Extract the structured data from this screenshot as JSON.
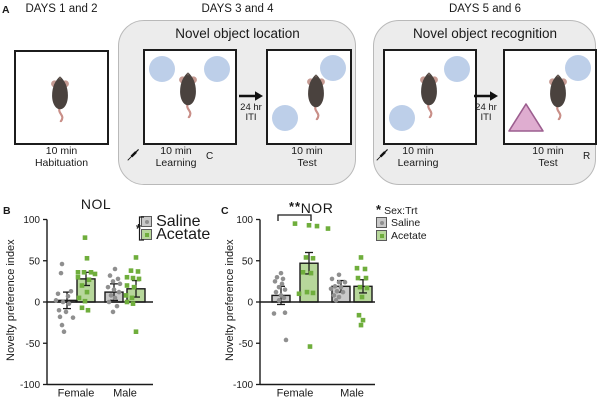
{
  "panels": {
    "a_label": "A",
    "b_label": "B",
    "c_label": "C"
  },
  "panel_a": {
    "habituation": {
      "day_title": "DAYS 1 and 2",
      "caption_line1": "10 min",
      "caption_line2": "Habituation"
    },
    "nol": {
      "day_title": "DAYS 3 and 4",
      "panel_title": "Novel object location",
      "learning_caption_line1": "10 min",
      "learning_caption_line2": "Learning",
      "iti_line1": "24 hr",
      "iti_line2": "ITI",
      "test_caption_line1": "10 min",
      "test_caption_line2": "Test",
      "corner_letter": "C"
    },
    "nor": {
      "day_title": "DAYS 5 and 6",
      "panel_title": "Novel object recognition",
      "learning_caption_line1": "10 min",
      "learning_caption_line2": "Learning",
      "iti_line1": "24 hr",
      "iti_line2": "ITI",
      "test_caption_line1": "10 min",
      "test_caption_line2": "Test",
      "corner_letter": "R"
    }
  },
  "colors": {
    "saline_fill": "#c9c9c9",
    "saline_marker": "#8f8f8f",
    "acetate_fill": "#b7d79b",
    "acetate_marker": "#6fae3c",
    "object_blue": "#bdcfe9",
    "triangle_pink": "#dfadd0",
    "triangle_border": "#9c5e8f",
    "panel_bg": "#ececec",
    "axis": "#1a1a1a"
  },
  "chart_data": [
    {
      "id": "nol",
      "type": "bar",
      "title": "NOL",
      "ylabel": "Novelty preference index",
      "ylim": [
        -100,
        100
      ],
      "yticks": [
        -100,
        -50,
        0,
        50,
        100
      ],
      "categories": [
        "Female",
        "Male"
      ],
      "series": [
        {
          "name": "Saline",
          "marker": "circle",
          "bar_color": "#c9c9c9",
          "marker_color": "#8f8f8f",
          "means": [
            2,
            12
          ],
          "sems": [
            10,
            10
          ],
          "points": [
            [
              [
                -5,
                46
              ],
              [
                -6,
                35
              ],
              [
                4,
                13
              ],
              [
                -9,
                10
              ],
              [
                1,
                7
              ],
              [
                -11,
                2
              ],
              [
                -4,
                0
              ],
              [
                2,
                -2
              ],
              [
                -8,
                -10
              ],
              [
                -1,
                -12
              ],
              [
                -7,
                -18
              ],
              [
                6,
                -19
              ],
              [
                -5,
                -28
              ],
              [
                -3,
                -36
              ]
            ],
            [
              [
                1,
                40
              ],
              [
                -4,
                32
              ],
              [
                4,
                28
              ],
              [
                -1,
                25
              ],
              [
                6,
                22
              ],
              [
                -6,
                18
              ],
              [
                0,
                15
              ],
              [
                5,
                12
              ],
              [
                -3,
                8
              ],
              [
                1,
                5
              ],
              [
                -5,
                0
              ],
              [
                3,
                -5
              ],
              [
                -1,
                -12
              ]
            ]
          ]
        },
        {
          "name": "Acetate",
          "marker": "square",
          "bar_color": "#b7d79b",
          "marker_color": "#6fae3c",
          "means": [
            28,
            16
          ],
          "sems": [
            8,
            10
          ],
          "points": [
            [
              [
                -1,
                78
              ],
              [
                1,
                53
              ],
              [
                -8,
                36
              ],
              [
                -2,
                36
              ],
              [
                5,
                36
              ],
              [
                9,
                34
              ],
              [
                -8,
                30
              ],
              [
                3,
                27
              ],
              [
                -4,
                20
              ],
              [
                1,
                12
              ],
              [
                -7,
                5
              ],
              [
                -1,
                1
              ],
              [
                -4,
                -7
              ],
              [
                2,
                -10
              ]
            ],
            [
              [
                0,
                54
              ],
              [
                -5,
                38
              ],
              [
                2,
                37
              ],
              [
                -9,
                30
              ],
              [
                -3,
                29
              ],
              [
                3,
                28
              ],
              [
                -9,
                20
              ],
              [
                -2,
                18
              ],
              [
                -10,
                8
              ],
              [
                -4,
                5
              ],
              [
                -9,
                0
              ],
              [
                -3,
                -2
              ],
              [
                0,
                -36
              ]
            ]
          ]
        }
      ],
      "legend": {
        "position": "top-right",
        "significance": "*",
        "items": [
          "Saline",
          "Acetate"
        ]
      }
    },
    {
      "id": "nor",
      "type": "bar",
      "title": "NOR",
      "ylabel": "Novelty preference index",
      "ylim": [
        -100,
        100
      ],
      "yticks": [
        -100,
        -50,
        0,
        50,
        100
      ],
      "categories": [
        "Female",
        "Male"
      ],
      "series": [
        {
          "name": "Saline",
          "marker": "circle",
          "bar_color": "#c9c9c9",
          "marker_color": "#8f8f8f",
          "means": [
            8,
            19
          ],
          "sems": [
            11,
            7
          ],
          "points": [
            [
              [
                0,
                35
              ],
              [
                -4,
                30
              ],
              [
                2,
                28
              ],
              [
                -6,
                25
              ],
              [
                1,
                22
              ],
              [
                -2,
                18
              ],
              [
                4,
                15
              ],
              [
                -5,
                12
              ],
              [
                0,
                8
              ],
              [
                3,
                5
              ],
              [
                -2,
                2
              ],
              [
                4,
                -13
              ],
              [
                -7,
                -14
              ],
              [
                5,
                -46
              ]
            ],
            [
              [
                -2,
                33
              ],
              [
                -9,
                28
              ],
              [
                -2,
                24
              ],
              [
                4,
                24
              ],
              [
                -6,
                19
              ],
              [
                0,
                18
              ],
              [
                -10,
                16
              ],
              [
                -4,
                13
              ],
              [
                2,
                12
              ],
              [
                -7,
                8
              ],
              [
                -2,
                6
              ],
              [
                -5,
                2
              ]
            ]
          ]
        },
        {
          "name": "Acetate",
          "marker": "square",
          "bar_color": "#b7d79b",
          "marker_color": "#6fae3c",
          "means": [
            47,
            19
          ],
          "sems": [
            13,
            8
          ],
          "points": [
            [
              [
                -14,
                95
              ],
              [
                0,
                93
              ],
              [
                8,
                92
              ],
              [
                19,
                89
              ],
              [
                -3,
                54
              ],
              [
                4,
                53
              ],
              [
                -6,
                36
              ],
              [
                2,
                35
              ],
              [
                -2,
                12
              ],
              [
                4,
                11
              ],
              [
                -10,
                10
              ],
              [
                1,
                -54
              ]
            ],
            [
              [
                -2,
                54
              ],
              [
                -6,
                41
              ],
              [
                2,
                40
              ],
              [
                -5,
                29
              ],
              [
                3,
                29
              ],
              [
                -3,
                18
              ],
              [
                4,
                17
              ],
              [
                -1,
                6
              ],
              [
                -4,
                -16
              ],
              [
                0,
                -22
              ],
              [
                -2,
                -28
              ]
            ]
          ]
        }
      ],
      "significance_bracket": {
        "category": "Female",
        "label": "**"
      },
      "legend": {
        "position": "top-right",
        "sig_star": "*",
        "sig_text": "Sex:Trt",
        "items": [
          "Saline",
          "Acetate"
        ]
      }
    }
  ]
}
